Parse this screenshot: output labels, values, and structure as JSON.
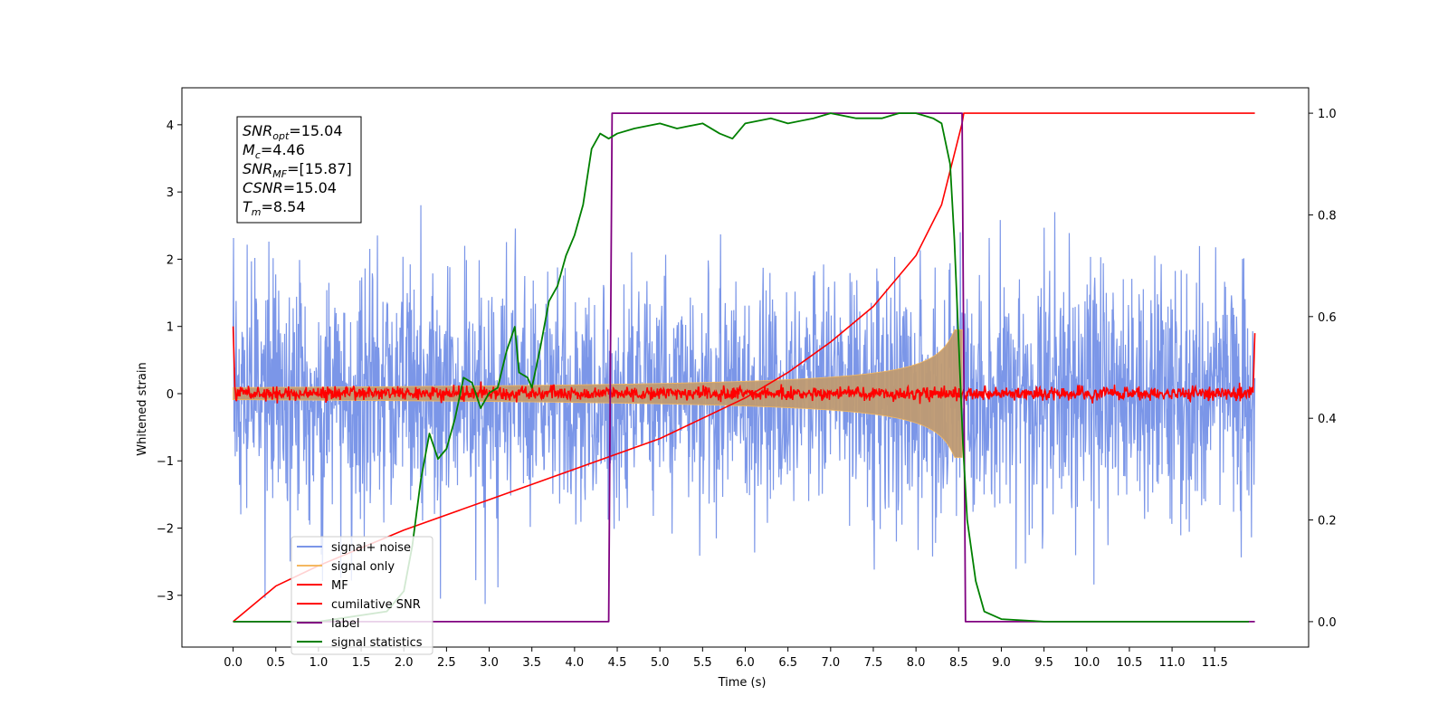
{
  "chart_data": {
    "type": "line",
    "title": "",
    "xlabel": "Time (s)",
    "ylabel": "Whitened strain",
    "y2label": "",
    "xlim": [
      -0.6,
      12.6
    ],
    "ylim": [
      -3.77,
      4.55
    ],
    "y2lim": [
      -0.05,
      1.05
    ],
    "xticks": [
      0.0,
      0.5,
      1.0,
      1.5,
      2.0,
      2.5,
      3.0,
      3.5,
      4.0,
      4.5,
      5.0,
      5.5,
      6.0,
      6.5,
      7.0,
      7.5,
      8.0,
      8.5,
      9.0,
      9.5,
      10.0,
      10.5,
      11.0,
      11.5
    ],
    "xtick_labels": [
      "0.0",
      "0.5",
      "1.0",
      "1.5",
      "2.0",
      "2.5",
      "3.0",
      "3.5",
      "4.0",
      "4.5",
      "5.0",
      "5.5",
      "6.0",
      "6.5",
      "7.0",
      "7.5",
      "8.0",
      "8.5",
      "9.0",
      "9.5",
      "10.0",
      "10.5",
      "11.0",
      "11.5"
    ],
    "yticks": [
      -3,
      -2,
      -1,
      0,
      1,
      2,
      3,
      4
    ],
    "ytick_labels": [
      "−3",
      "−2",
      "−1",
      "0",
      "1",
      "2",
      "3",
      "4"
    ],
    "y2ticks": [
      0.0,
      0.2,
      0.4,
      0.6,
      0.8,
      1.0
    ],
    "y2tick_labels": [
      "0.0",
      "0.2",
      "0.4",
      "0.6",
      "0.8",
      "1.0"
    ],
    "grid": false,
    "legend_position": "lower-left",
    "series": [
      {
        "name": "signal+ noise",
        "color": "#7b96e8",
        "axis": "left",
        "kind": "noise",
        "x_range": [
          0.0,
          11.97
        ],
        "std": 0.9
      },
      {
        "name": "signal only",
        "color": "#f4b860",
        "axis": "left",
        "kind": "chirp",
        "x_range": [
          0.0,
          8.54
        ]
      },
      {
        "name": "MF",
        "color": "#ff0000",
        "axis": "left",
        "kind": "small-noise",
        "x_range": [
          0.0,
          11.97
        ]
      },
      {
        "name": "cumilative SNR",
        "color": "#ff0000",
        "axis": "right",
        "x": [
          0.0,
          0.5,
          1.0,
          2.0,
          3.0,
          4.0,
          5.0,
          6.0,
          6.5,
          7.0,
          7.5,
          8.0,
          8.3,
          8.54,
          8.56,
          11.97
        ],
        "y": [
          0.0,
          0.07,
          0.11,
          0.18,
          0.24,
          0.3,
          0.36,
          0.44,
          0.49,
          0.55,
          0.62,
          0.72,
          0.82,
          0.98,
          1.0,
          1.0
        ]
      },
      {
        "name": "label",
        "color": "#800080",
        "axis": "right",
        "x": [
          0.0,
          4.4,
          4.44,
          8.54,
          8.58,
          11.97
        ],
        "y": [
          0.0,
          0.0,
          1.0,
          1.0,
          0.0,
          0.0
        ]
      },
      {
        "name": "signal statistics",
        "color": "#008000",
        "axis": "right",
        "x": [
          0.0,
          1.0,
          1.8,
          2.0,
          2.1,
          2.2,
          2.3,
          2.4,
          2.5,
          2.6,
          2.7,
          2.8,
          2.9,
          3.0,
          3.1,
          3.2,
          3.3,
          3.35,
          3.45,
          3.5,
          3.6,
          3.7,
          3.8,
          3.9,
          4.0,
          4.1,
          4.2,
          4.3,
          4.4,
          4.5,
          4.7,
          5.0,
          5.2,
          5.5,
          5.7,
          5.85,
          6.0,
          6.3,
          6.5,
          6.8,
          7.0,
          7.3,
          7.6,
          7.8,
          8.0,
          8.2,
          8.3,
          8.4,
          8.45,
          8.5,
          8.55,
          8.6,
          8.7,
          8.8,
          9.0,
          9.5,
          11.9
        ],
        "y": [
          0.0,
          0.0,
          0.02,
          0.06,
          0.15,
          0.28,
          0.37,
          0.32,
          0.34,
          0.4,
          0.48,
          0.47,
          0.42,
          0.45,
          0.46,
          0.53,
          0.58,
          0.49,
          0.48,
          0.46,
          0.54,
          0.63,
          0.66,
          0.72,
          0.76,
          0.82,
          0.93,
          0.96,
          0.95,
          0.96,
          0.97,
          0.98,
          0.97,
          0.98,
          0.96,
          0.95,
          0.98,
          0.99,
          0.98,
          0.99,
          1.0,
          0.99,
          0.99,
          1.0,
          1.0,
          0.99,
          0.98,
          0.9,
          0.75,
          0.55,
          0.35,
          0.2,
          0.08,
          0.02,
          0.005,
          0.0,
          0.0
        ]
      }
    ],
    "annotation_lines": [
      {
        "base": "SNR",
        "sub": "opt",
        "value": "=15.04"
      },
      {
        "base": "M",
        "sub": "c",
        "value": "=4.46"
      },
      {
        "base": "SNR",
        "sub": "MF",
        "value": "=[15.87]"
      },
      {
        "base": "CSNR",
        "sub": "",
        "value": "=15.04"
      },
      {
        "base": "T",
        "sub": "m",
        "value": "=8.54"
      }
    ]
  }
}
